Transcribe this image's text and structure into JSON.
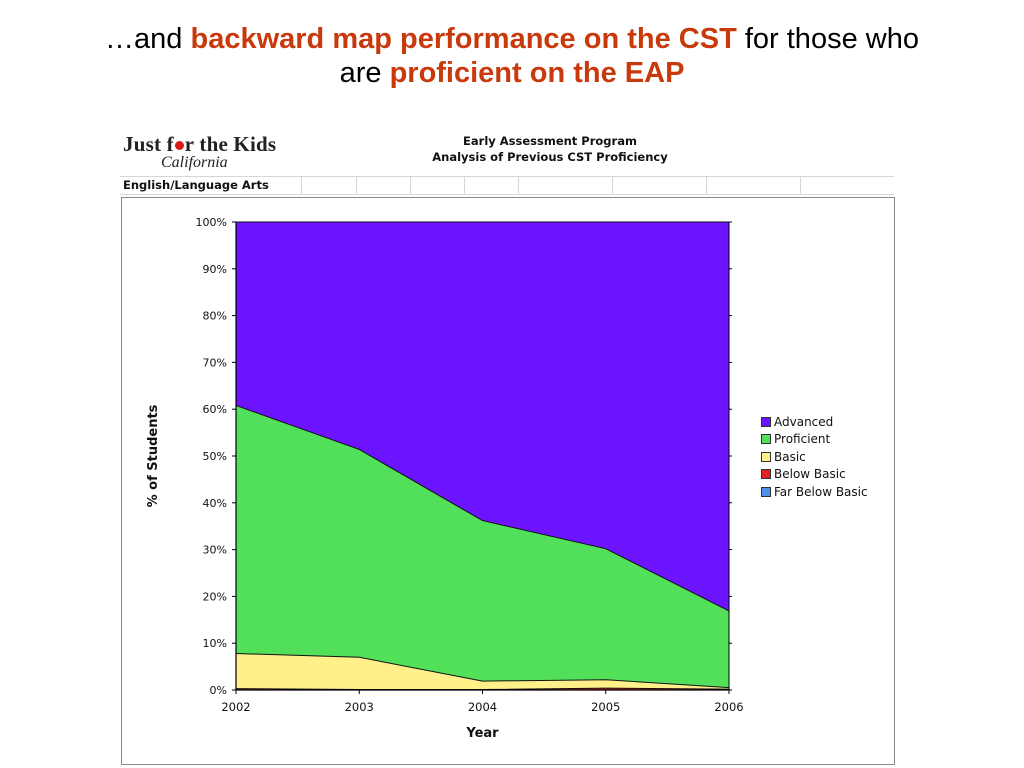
{
  "headline": {
    "line1_prefix": "…and ",
    "line1_highlight": "backward map performance on the CST",
    "line1_suffix": " for those who",
    "line2_prefix": "are ",
    "line2_highlight": "proficient on the EAP"
  },
  "logo": {
    "line1_a": "Just f",
    "line1_b": "r the Kids",
    "line2": "California"
  },
  "report": {
    "title_line1": "Early Assessment Program",
    "title_line2": "Analysis of Previous CST Proficiency",
    "subject": "English/Language Arts"
  },
  "colors": {
    "Advanced": "#6c14ff",
    "Proficient": "#52e05a",
    "Basic": "#fff08a",
    "Below Basic": "#dd2222",
    "Far Below Basic": "#4f8ee8"
  },
  "chart_data": {
    "type": "area",
    "stacked": true,
    "percent": true,
    "x": [
      "2002",
      "2003",
      "2004",
      "2005",
      "2006"
    ],
    "xlabel": "Year",
    "ylabel": "% of Students",
    "ylim": [
      0,
      100
    ],
    "yticks": [
      "0%",
      "10%",
      "20%",
      "30%",
      "40%",
      "50%",
      "60%",
      "70%",
      "80%",
      "90%",
      "100%"
    ],
    "legend_position": "right",
    "series": [
      {
        "name": "Far Below Basic",
        "values": [
          0.0,
          0.0,
          0.0,
          0.0,
          0.0
        ]
      },
      {
        "name": "Below Basic",
        "values": [
          0.3,
          0.1,
          0.1,
          0.4,
          0.2
        ]
      },
      {
        "name": "Basic",
        "values": [
          7.5,
          6.9,
          1.8,
          1.8,
          0.3
        ]
      },
      {
        "name": "Proficient",
        "values": [
          53.0,
          44.4,
          34.3,
          28.0,
          16.4
        ]
      },
      {
        "name": "Advanced",
        "values": [
          39.2,
          48.6,
          63.8,
          69.8,
          83.1
        ]
      }
    ],
    "legend": [
      "Advanced",
      "Proficient",
      "Basic",
      "Below Basic",
      "Far Below Basic"
    ]
  }
}
